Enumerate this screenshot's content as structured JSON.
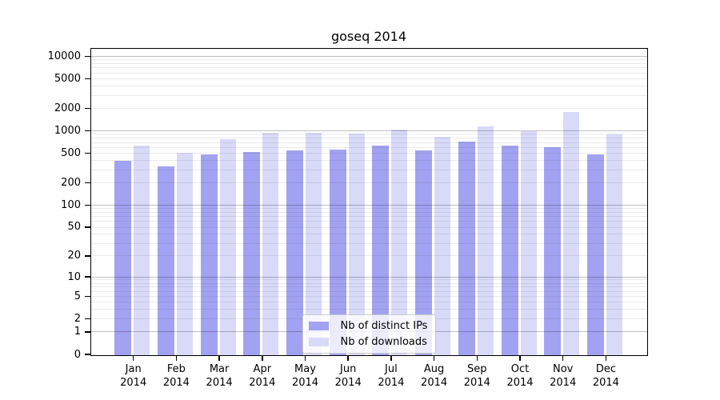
{
  "chart_data": {
    "type": "bar",
    "title": "goseq 2014",
    "categories": [
      "Jan",
      "Feb",
      "Mar",
      "Apr",
      "May",
      "Jun",
      "Jul",
      "Aug",
      "Sep",
      "Oct",
      "Nov",
      "Dec"
    ],
    "x_tick_year": "2014",
    "series": [
      {
        "name": "Nb of distinct IPs",
        "color": "#a2a2f2",
        "values": [
          400,
          335,
          490,
          530,
          560,
          570,
          650,
          560,
          730,
          650,
          610,
          490
        ]
      },
      {
        "name": "Nb of downloads",
        "color": "#d9d9f8",
        "values": [
          650,
          520,
          790,
          965,
          960,
          930,
          1060,
          840,
          1160,
          1000,
          1800,
          915
        ]
      }
    ],
    "y_axis": {
      "scale": "log10(value+1)",
      "ticks": [
        10000,
        5000,
        2000,
        1000,
        500,
        200,
        100,
        50,
        20,
        10,
        5,
        2,
        1,
        0
      ],
      "max": 12500,
      "major_gridlines": [
        1,
        10,
        100,
        1000,
        10000
      ]
    },
    "xlabel": "",
    "ylabel": "",
    "grid": true,
    "legend_position": "inside bottom-center"
  },
  "colors": {
    "bar_distinct_ips": "#a2a2f2",
    "bar_downloads": "#d9d9f8",
    "grid_major": "#bfbfbf",
    "grid_minor": "#ebebeb",
    "axis": "#000000",
    "background": "#ffffff",
    "legend_border": "#cccccc"
  }
}
